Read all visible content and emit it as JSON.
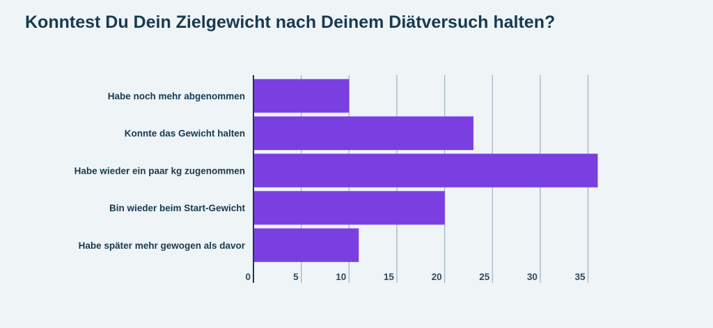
{
  "chart_data": {
    "type": "bar",
    "orientation": "horizontal",
    "title": "Konntest Du Dein Zielgewicht nach Deinem Diätversuch halten?",
    "categories": [
      "Habe noch mehr abgenommen",
      "Konnte das Gewicht halten",
      "Habe wieder ein paar kg zugenommen",
      "Bin wieder beim Start-Gewicht",
      "Habe später mehr gewogen als davor"
    ],
    "values": [
      10,
      23,
      36,
      20,
      11
    ],
    "xlim": [
      0,
      37
    ],
    "xticks": [
      "0",
      "5",
      "10",
      "15",
      "20",
      "25",
      "30",
      "35"
    ],
    "grid": true,
    "bar_color": "#7a3fe0",
    "text_color": "#173a4f",
    "background": "#eff4f7"
  }
}
